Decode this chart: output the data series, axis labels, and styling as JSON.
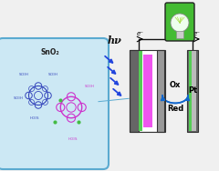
{
  "bg_color": "#f0f0f0",
  "bubble_color": "#cce8f4",
  "bubble_edge": "#5aaad0",
  "sno2_text": "SnO₂",
  "hv_text": "hν",
  "ox_text": "Ox",
  "red_text": "Red",
  "pt_text": "Pt",
  "e_minus": "e⁻",
  "electrode_gray_dark": "#666666",
  "electrode_gray_mid": "#999999",
  "electrode_gray_light": "#bbbbbb",
  "electrode_green": "#55cc55",
  "electrode_pink": "#ee44ee",
  "hv_arrow_color": "#2244dd",
  "ox_red_arrow_color": "#1166cc",
  "light_green_bg": "#44bb33",
  "light_white": "#eeffee",
  "wire_color": "#111111",
  "molecule_blue": "#3344bb",
  "molecule_pink": "#cc33cc",
  "molecule_green_dot": "#44bb44"
}
